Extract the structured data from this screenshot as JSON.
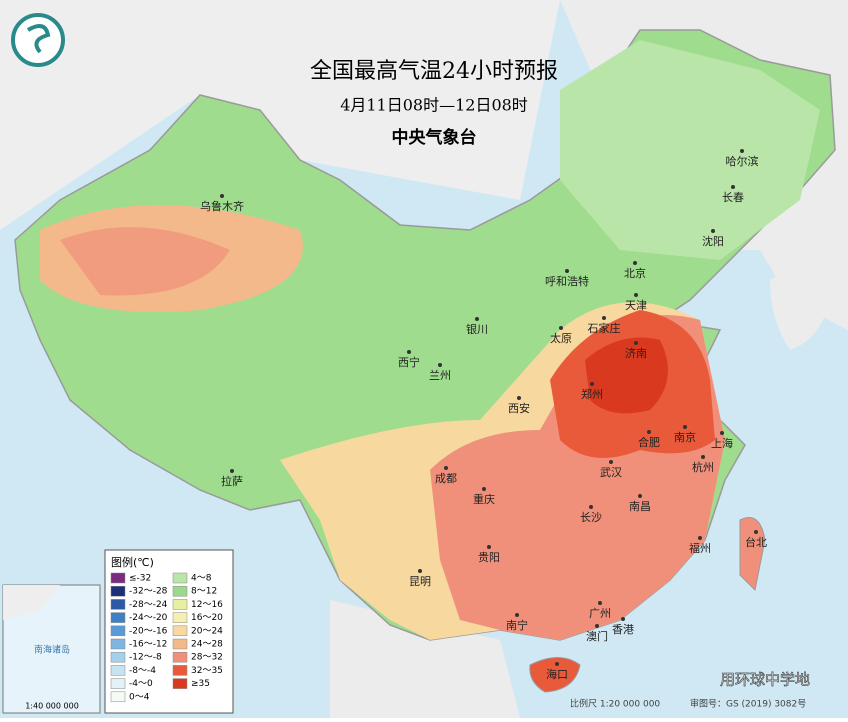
{
  "header": {
    "title": "全国最高气温24小时预报",
    "subtitle": "4月11日08时—12日08时",
    "agency": "中央气象台"
  },
  "cities": [
    "乌鲁木齐",
    "哈尔滨",
    "长春",
    "沈阳",
    "北京",
    "天津",
    "呼和浩特",
    "石家庄",
    "太原",
    "济南",
    "银川",
    "西宁",
    "兰州",
    "郑州",
    "西安",
    "合肥",
    "南京",
    "上海",
    "杭州",
    "成都",
    "武汉",
    "重庆",
    "南昌",
    "长沙",
    "拉萨",
    "贵阳",
    "福州",
    "台北",
    "昆明",
    "南宁",
    "广州",
    "澳门",
    "香港",
    "海口"
  ],
  "legend": {
    "title": "图例(℃)",
    "items": [
      {
        "label": "≤-32",
        "color": "#7b2c7f"
      },
      {
        "label": "-32～-28",
        "color": "#1f2e7a"
      },
      {
        "label": "-28～-24",
        "color": "#2d5aa8"
      },
      {
        "label": "-24～-20",
        "color": "#3f7fc4"
      },
      {
        "label": "-20～-16",
        "color": "#5a9ad6"
      },
      {
        "label": "-16～-12",
        "color": "#7fb5e0"
      },
      {
        "label": "-12～-8",
        "color": "#a6cfea"
      },
      {
        "label": "-8～-4",
        "color": "#c7e3f1"
      },
      {
        "label": "-4～0",
        "color": "#e3f1f8"
      },
      {
        "label": "0～4",
        "color": "#f5fbf5"
      },
      {
        "label": "4～8",
        "color": "#b9e6a8"
      },
      {
        "label": "8～12",
        "color": "#9bd98a"
      },
      {
        "label": "12～16",
        "color": "#e6f0a0"
      },
      {
        "label": "16～20",
        "color": "#f5f0b0"
      },
      {
        "label": "20～24",
        "color": "#f7d9a0"
      },
      {
        "label": "24～28",
        "color": "#f4b98a"
      },
      {
        "label": "28～32",
        "color": "#f0907a"
      },
      {
        "label": "32～35",
        "color": "#e95a3a"
      },
      {
        "label": "≥35",
        "color": "#d93a1f"
      }
    ]
  },
  "inset": {
    "title": "南海诸岛",
    "scale": "1:40 000 000"
  },
  "footer": {
    "scale": "比例尺 1:20 000 000",
    "approval": "审图号：GS (2019) 3082号"
  },
  "watermark": "用环球中学地"
}
